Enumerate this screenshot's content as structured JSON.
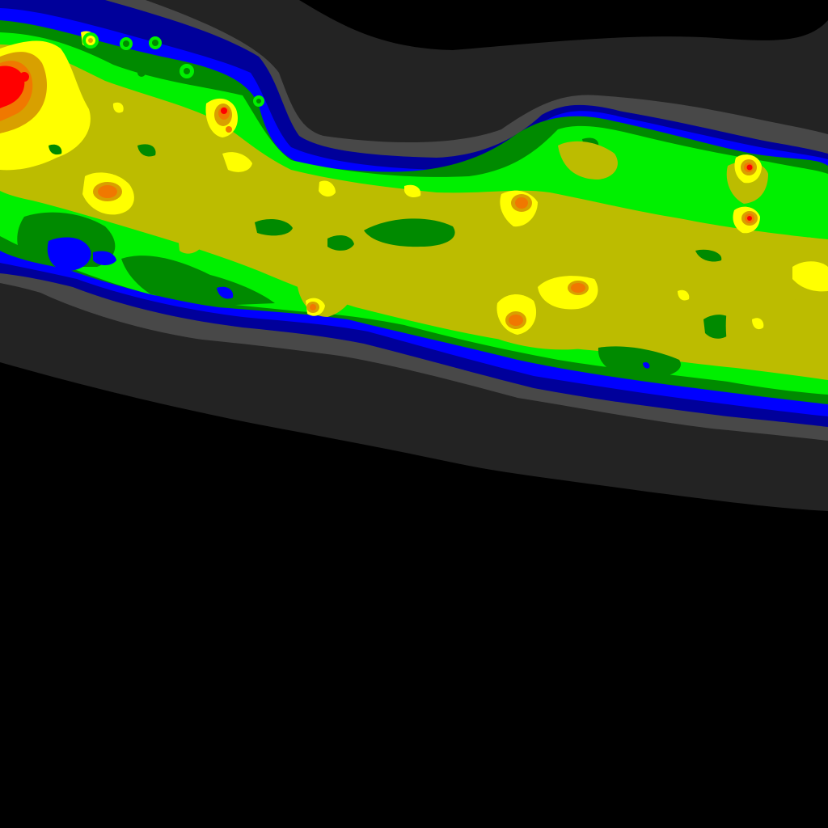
{
  "map": {
    "type": "contour-density-map",
    "background_color": "#000000",
    "legend": "none",
    "labels": [],
    "bands": [
      {
        "level": 1,
        "color": "#232323"
      },
      {
        "level": 2,
        "color": "#484848"
      },
      {
        "level": 3,
        "color": "#00009a"
      },
      {
        "level": 4,
        "color": "#0000ff"
      },
      {
        "level": 5,
        "color": "#008a00"
      },
      {
        "level": 6,
        "color": "#00f000"
      },
      {
        "level": 7,
        "color": "#bcbc00"
      },
      {
        "level": 8,
        "color": "#ffff00"
      },
      {
        "level": 9,
        "color": "#d8a000"
      },
      {
        "level": 10,
        "color": "#f07800"
      },
      {
        "level": 11,
        "color": "#ff0000"
      }
    ]
  }
}
